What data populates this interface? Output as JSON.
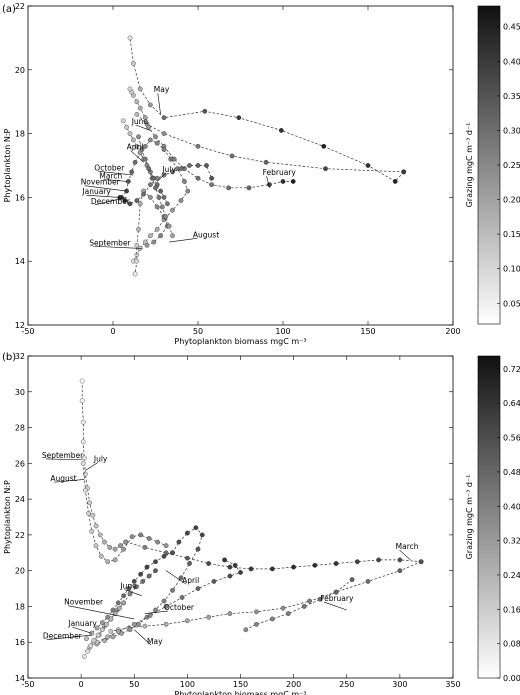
{
  "chart_data": [
    {
      "panel": "(a)",
      "type": "scatter",
      "xlabel": "Phytoplankton biomass mgC m⁻³",
      "ylabel": "Phytoplankton N:P",
      "xlim": [
        -50,
        200
      ],
      "ylim": [
        12,
        22
      ],
      "xticks": [
        -50,
        0,
        50,
        100,
        150,
        200
      ],
      "yticks": [
        12,
        14,
        16,
        18,
        20,
        22
      ],
      "colorbar": {
        "label": "Grazing mgC m⁻³ d⁻¹",
        "min": 0.02,
        "max": 0.48,
        "ticks": [
          0.05,
          0.1,
          0.15,
          0.2,
          0.25,
          0.3,
          0.35,
          0.4,
          0.45
        ]
      },
      "grid": false,
      "line_style": "dashed",
      "series": [
        {
          "x": [
            171,
            166,
            150,
            124,
            99,
            74,
            54,
            30,
            22,
            16,
            12,
            10
          ],
          "y": [
            16.8,
            16.5,
            17.0,
            17.6,
            18.1,
            18.5,
            18.7,
            18.5,
            18.9,
            19.4,
            20.2,
            21.0
          ],
          "z": [
            0.4,
            0.45,
            0.42,
            0.45,
            0.42,
            0.4,
            0.35,
            0.3,
            0.22,
            0.18,
            0.12,
            0.08
          ]
        },
        {
          "x": [
            171,
            125,
            90,
            70,
            50,
            30,
            20,
            14
          ],
          "y": [
            16.8,
            16.9,
            17.1,
            17.3,
            17.6,
            18.0,
            18.3,
            18.6
          ],
          "z": [
            0.4,
            0.38,
            0.32,
            0.3,
            0.28,
            0.24,
            0.2,
            0.16
          ]
        },
        {
          "x": [
            106,
            100,
            92,
            80,
            68,
            58,
            50,
            42,
            36,
            30,
            25,
            21,
            19,
            16,
            14,
            12,
            11,
            10
          ],
          "y": [
            16.5,
            16.5,
            16.4,
            16.3,
            16.3,
            16.4,
            16.6,
            16.9,
            17.2,
            17.6,
            17.9,
            18.2,
            18.5,
            18.8,
            19.0,
            19.2,
            19.3,
            19.4
          ],
          "z": [
            0.45,
            0.42,
            0.38,
            0.32,
            0.3,
            0.28,
            0.3,
            0.28,
            0.26,
            0.25,
            0.24,
            0.22,
            0.2,
            0.18,
            0.16,
            0.14,
            0.12,
            0.1
          ]
        },
        {
          "x": [
            5,
            8,
            9,
            11,
            13,
            16,
            19,
            22,
            26,
            30,
            34,
            38,
            42,
            44,
            40,
            35,
            30,
            26,
            22,
            19,
            16,
            14,
            12
          ],
          "y": [
            16.0,
            16.2,
            16.5,
            16.8,
            17.1,
            17.4,
            17.6,
            17.8,
            17.7,
            17.5,
            17.2,
            16.9,
            16.5,
            16.2,
            15.9,
            15.6,
            15.3,
            15.0,
            14.8,
            14.6,
            14.4,
            14.2,
            14.0
          ],
          "z": [
            0.4,
            0.38,
            0.35,
            0.32,
            0.3,
            0.28,
            0.26,
            0.25,
            0.26,
            0.27,
            0.28,
            0.27,
            0.26,
            0.25,
            0.24,
            0.22,
            0.2,
            0.18,
            0.16,
            0.14,
            0.12,
            0.1,
            0.08
          ]
        },
        {
          "x": [
            20,
            24,
            28,
            32,
            30,
            26,
            22,
            18,
            16,
            15,
            14,
            14,
            13
          ],
          "y": [
            14.5,
            14.6,
            14.8,
            15.1,
            15.4,
            15.7,
            16.0,
            16.2,
            15.8,
            15.0,
            14.5,
            14.0,
            13.6
          ],
          "z": [
            0.22,
            0.24,
            0.26,
            0.28,
            0.27,
            0.25,
            0.23,
            0.2,
            0.18,
            0.15,
            0.12,
            0.1,
            0.06
          ]
        },
        {
          "x": [
            4,
            7,
            10,
            14,
            18,
            22,
            26,
            30,
            35,
            40,
            45,
            50,
            55,
            58
          ],
          "y": [
            16.0,
            15.9,
            15.8,
            15.9,
            16.1,
            16.4,
            16.6,
            16.7,
            16.8,
            16.9,
            17.0,
            17.0,
            17.0,
            16.6
          ],
          "z": [
            0.42,
            0.4,
            0.36,
            0.32,
            0.3,
            0.28,
            0.26,
            0.25,
            0.27,
            0.29,
            0.3,
            0.32,
            0.34,
            0.35
          ]
        },
        {
          "x": [
            6,
            8,
            10,
            12,
            14,
            16,
            18,
            20,
            22,
            24,
            26,
            28,
            30,
            32
          ],
          "y": [
            18.4,
            18.2,
            18.0,
            17.8,
            17.6,
            17.4,
            17.2,
            17.0,
            16.8,
            16.6,
            16.4,
            16.2,
            16.0,
            15.8
          ],
          "z": [
            0.1,
            0.12,
            0.14,
            0.16,
            0.18,
            0.2,
            0.22,
            0.24,
            0.26,
            0.28,
            0.3,
            0.32,
            0.3,
            0.28
          ]
        },
        {
          "x": [
            15,
            17,
            19,
            21,
            23,
            25,
            27,
            29,
            31,
            33,
            35
          ],
          "y": [
            17.9,
            17.5,
            17.2,
            16.9,
            16.6,
            16.3,
            16.0,
            15.7,
            15.4,
            15.1,
            14.8
          ],
          "z": [
            0.24,
            0.26,
            0.28,
            0.3,
            0.32,
            0.3,
            0.28,
            0.26,
            0.24,
            0.22,
            0.2
          ]
        }
      ],
      "annotations": [
        {
          "text": "May",
          "x": 24,
          "y": 19.3,
          "ax": 28,
          "ay": 18.6
        },
        {
          "text": "June",
          "x": 11,
          "y": 18.3,
          "ax": 22,
          "ay": 18.1
        },
        {
          "text": "April",
          "x": 8,
          "y": 17.5,
          "ax": 18,
          "ay": 17.1
        },
        {
          "text": "October",
          "x": -11,
          "y": 16.85,
          "ax": 12,
          "ay": 16.7
        },
        {
          "text": "July",
          "x": 29,
          "y": 16.8,
          "ax": 26,
          "ay": 16.5
        },
        {
          "text": "March",
          "x": -8,
          "y": 16.6,
          "ax": 8,
          "ay": 16.5
        },
        {
          "text": "November",
          "x": -19,
          "y": 16.4,
          "ax": 8,
          "ay": 16.2
        },
        {
          "text": "February",
          "x": 88,
          "y": 16.7,
          "ax": 92,
          "ay": 16.3
        },
        {
          "text": "January",
          "x": -18,
          "y": 16.1,
          "ax": 4,
          "ay": 16.0
        },
        {
          "text": "December",
          "x": -13,
          "y": 15.8,
          "ax": 8,
          "ay": 16.0
        },
        {
          "text": "August",
          "x": 47,
          "y": 14.75,
          "ax": 33,
          "ay": 14.6
        },
        {
          "text": "September",
          "x": -14,
          "y": 14.5,
          "ax": 17,
          "ay": 14.4
        }
      ]
    },
    {
      "panel": "(b)",
      "type": "scatter",
      "xlabel": "Phytoplankton biomass mgC m⁻³",
      "ylabel": "Phytoplankton N:P",
      "xlim": [
        -50,
        350
      ],
      "ylim": [
        14,
        32
      ],
      "xticks": [
        -50,
        0,
        50,
        100,
        150,
        200,
        250,
        300,
        350
      ],
      "yticks": [
        14,
        16,
        18,
        20,
        22,
        24,
        26,
        28,
        30,
        32
      ],
      "colorbar": {
        "label": "Grazing mgC m⁻³ d⁻¹",
        "min": 0.0,
        "max": 0.75,
        "ticks": [
          0.0,
          0.08,
          0.16,
          0.24,
          0.32,
          0.4,
          0.48,
          0.56,
          0.64,
          0.72
        ]
      },
      "grid": false,
      "line_style": "dashed",
      "series": [
        {
          "x": [
            1,
            1,
            2,
            2,
            3,
            4,
            6,
            8,
            11,
            14,
            18,
            22,
            27,
            32,
            37,
            42
          ],
          "y": [
            30.6,
            29.5,
            28.3,
            27.2,
            26.3,
            25.4,
            24.6,
            23.8,
            23.1,
            22.5,
            22.0,
            21.6,
            21.3,
            21.2,
            21.4,
            21.6
          ],
          "z": [
            0.02,
            0.04,
            0.06,
            0.08,
            0.1,
            0.12,
            0.14,
            0.16,
            0.18,
            0.2,
            0.22,
            0.25,
            0.28,
            0.3,
            0.32,
            0.34
          ]
        },
        {
          "x": [
            2,
            4,
            7,
            10,
            14,
            19,
            25,
            32,
            40,
            48,
            56,
            64,
            72,
            80
          ],
          "y": [
            26.0,
            24.5,
            23.2,
            22.2,
            21.4,
            20.8,
            20.5,
            20.6,
            21.2,
            21.9,
            22.0,
            21.8,
            21.6,
            21.4
          ],
          "z": [
            0.1,
            0.12,
            0.14,
            0.16,
            0.18,
            0.2,
            0.24,
            0.28,
            0.32,
            0.36,
            0.4,
            0.38,
            0.36,
            0.34
          ]
        },
        {
          "x": [
            42,
            60,
            80,
            100,
            120,
            140,
            160,
            180,
            200,
            220,
            240,
            260,
            280,
            300,
            320
          ],
          "y": [
            21.6,
            21.3,
            21.0,
            20.7,
            20.4,
            20.2,
            20.1,
            20.1,
            20.2,
            20.3,
            20.4,
            20.5,
            20.6,
            20.6,
            20.5
          ],
          "z": [
            0.34,
            0.4,
            0.46,
            0.52,
            0.56,
            0.6,
            0.62,
            0.64,
            0.66,
            0.66,
            0.64,
            0.6,
            0.58,
            0.56,
            0.54
          ]
        },
        {
          "x": [
            320,
            300,
            270,
            240,
            215,
            190,
            165,
            140,
            120,
            100,
            80,
            60,
            45,
            35,
            28
          ],
          "y": [
            20.5,
            20.0,
            19.4,
            18.8,
            18.3,
            17.9,
            17.7,
            17.6,
            17.4,
            17.2,
            17.0,
            16.9,
            16.8,
            16.7,
            16.6
          ],
          "z": [
            0.54,
            0.5,
            0.46,
            0.42,
            0.4,
            0.36,
            0.34,
            0.32,
            0.3,
            0.28,
            0.26,
            0.24,
            0.22,
            0.2,
            0.18
          ]
        },
        {
          "x": [
            255,
            240,
            225,
            210,
            195,
            180,
            165,
            155
          ],
          "y": [
            19.5,
            18.8,
            18.4,
            18.0,
            17.6,
            17.3,
            17.0,
            16.7
          ],
          "z": [
            0.5,
            0.48,
            0.46,
            0.44,
            0.42,
            0.4,
            0.38,
            0.36
          ]
        },
        {
          "x": [
            5,
            10,
            15,
            20,
            25,
            30,
            35,
            40,
            45,
            50,
            56,
            62,
            70,
            78,
            86
          ],
          "y": [
            16.2,
            16.5,
            16.8,
            17.1,
            17.4,
            17.8,
            18.2,
            18.6,
            19.0,
            19.4,
            19.8,
            20.2,
            20.5,
            20.8,
            21.0
          ],
          "z": [
            0.2,
            0.24,
            0.28,
            0.32,
            0.36,
            0.4,
            0.44,
            0.48,
            0.52,
            0.56,
            0.58,
            0.6,
            0.58,
            0.56,
            0.54
          ]
        },
        {
          "x": [
            86,
            92,
            100,
            108,
            114,
            110,
            102,
            94,
            86,
            78,
            70,
            62,
            54,
            46,
            38,
            30,
            22,
            15
          ],
          "y": [
            21.0,
            21.6,
            22.1,
            22.4,
            22.0,
            21.2,
            20.4,
            19.6,
            18.9,
            18.3,
            17.8,
            17.4,
            17.0,
            16.7,
            16.5,
            16.3,
            16.1,
            15.9
          ],
          "z": [
            0.54,
            0.56,
            0.58,
            0.6,
            0.58,
            0.54,
            0.5,
            0.46,
            0.42,
            0.4,
            0.38,
            0.36,
            0.34,
            0.32,
            0.3,
            0.28,
            0.26,
            0.22
          ]
        },
        {
          "x": [
            8,
            12,
            17,
            22,
            28,
            34,
            40,
            46,
            52,
            58,
            64,
            70
          ],
          "y": [
            15.7,
            16.0,
            16.4,
            16.9,
            17.3,
            17.8,
            18.2,
            18.7,
            19.1,
            19.4,
            19.7,
            20.0
          ],
          "z": [
            0.12,
            0.16,
            0.2,
            0.24,
            0.28,
            0.32,
            0.36,
            0.4,
            0.44,
            0.46,
            0.48,
            0.5
          ]
        },
        {
          "x": [
            15,
            25,
            35,
            50,
            65,
            80,
            95,
            110,
            125,
            140,
            150,
            145,
            135
          ],
          "y": [
            16.0,
            16.3,
            16.6,
            17.0,
            17.5,
            18.0,
            18.5,
            19.0,
            19.4,
            19.7,
            19.9,
            20.3,
            20.6
          ],
          "z": [
            0.2,
            0.24,
            0.28,
            0.32,
            0.36,
            0.4,
            0.44,
            0.48,
            0.52,
            0.56,
            0.6,
            0.62,
            0.64
          ]
        },
        {
          "x": [
            3,
            6,
            9,
            12,
            16,
            20,
            24,
            28,
            32,
            36,
            40
          ],
          "y": [
            15.2,
            15.5,
            15.8,
            16.1,
            16.4,
            16.7,
            17.0,
            17.3,
            17.6,
            17.9,
            18.2
          ],
          "z": [
            0.08,
            0.1,
            0.12,
            0.14,
            0.16,
            0.18,
            0.2,
            0.22,
            0.24,
            0.26,
            0.28
          ]
        }
      ],
      "annotations": [
        {
          "text": "September",
          "x": -37,
          "y": 26.3,
          "ax": 1,
          "ay": 26.2
        },
        {
          "text": "July",
          "x": 12,
          "y": 26.1,
          "ax": 4,
          "ay": 25.6
        },
        {
          "text": "August",
          "x": -29,
          "y": 25.0,
          "ax": 3,
          "ay": 25.1
        },
        {
          "text": "June",
          "x": 37,
          "y": 19.0,
          "ax": 57,
          "ay": 18.6
        },
        {
          "text": "April",
          "x": 95,
          "y": 19.3,
          "ax": 80,
          "ay": 20.0
        },
        {
          "text": "March",
          "x": 296,
          "y": 21.2,
          "ax": 310,
          "ay": 20.6
        },
        {
          "text": "November",
          "x": -16,
          "y": 18.1,
          "ax": 50,
          "ay": 17.3
        },
        {
          "text": "October",
          "x": 78,
          "y": 17.8,
          "ax": 60,
          "ay": 17.6
        },
        {
          "text": "February",
          "x": 225,
          "y": 18.3,
          "ax": 250,
          "ay": 17.8
        },
        {
          "text": "January",
          "x": -12,
          "y": 16.9,
          "ax": 10,
          "ay": 16.5
        },
        {
          "text": "December",
          "x": -36,
          "y": 16.2,
          "ax": 10,
          "ay": 16.4
        },
        {
          "text": "May",
          "x": 62,
          "y": 15.9,
          "ax": 50,
          "ay": 16.7
        }
      ]
    }
  ]
}
